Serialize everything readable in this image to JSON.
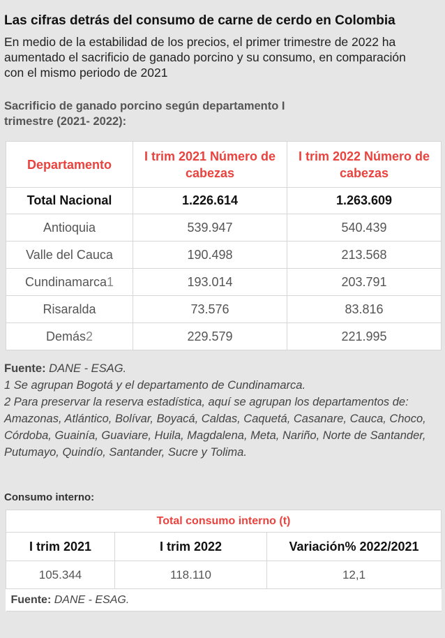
{
  "title": "Las cifras detrás del consumo de carne de cerdo en Colombia",
  "subtitle": "En medio de la estabilidad de los precios, el primer trimestre de 2022 ha aumentado el sacrificio de ganado porcino y su consumo, en comparación con el mismo periodo de 2021",
  "section1_title": "Sacrificio de ganado porcino según departamento I trimestre (2021- 2022):",
  "accent_color": "#e8433e",
  "chart_data": [
    {
      "type": "table",
      "columns": [
        "Departamento",
        "I trim 2021 Número de cabezas",
        "I trim 2022 Número de cabezas"
      ],
      "total": {
        "label": "Total Nacional",
        "v2021": "1.226.614",
        "v2022": "1.263.609"
      },
      "rows": [
        {
          "label": "Antioquia",
          "sup": "",
          "v2021": "539.947",
          "v2022": "540.439"
        },
        {
          "label": "Valle del Cauca",
          "sup": "",
          "v2021": "190.498",
          "v2022": "213.568"
        },
        {
          "label": "Cundinamarca",
          "sup": "1",
          "v2021": "193.014",
          "v2022": "203.791"
        },
        {
          "label": "Risaralda",
          "sup": "",
          "v2021": "73.576",
          "v2022": "83.816"
        },
        {
          "label": "Demás",
          "sup": "2",
          "v2021": "229.579",
          "v2022": "221.995"
        }
      ]
    },
    {
      "type": "table",
      "title": "Total consumo interno (t)",
      "columns": [
        "I trim 2021",
        "I trim 2022",
        "Variación% 2022/2021"
      ],
      "values": [
        "105.344",
        "118.110",
        "12,1"
      ]
    }
  ],
  "notes": {
    "source_label": "Fuente:",
    "source_text": " DANE - ESAG.",
    "note1": "1 Se agrupan Bogotá y el departamento de Cundinamarca.",
    "note2": "2 Para preservar la reserva estadística, aquí se agrupan los departamentos de: Amazonas, Atlántico, Bolívar, Boyacá, Caldas, Caquetá, Casanare, Cauca, Choco, Córdoba, Guainía, Guaviare, Huila, Magdalena, Meta, Nariño, Norte de Santander, Putumayo, Quindío, Santander, Sucre y Tolima."
  },
  "section2_title": "Consumo interno:",
  "source2": {
    "label": "Fuente:",
    "text": " DANE - ESAG."
  }
}
